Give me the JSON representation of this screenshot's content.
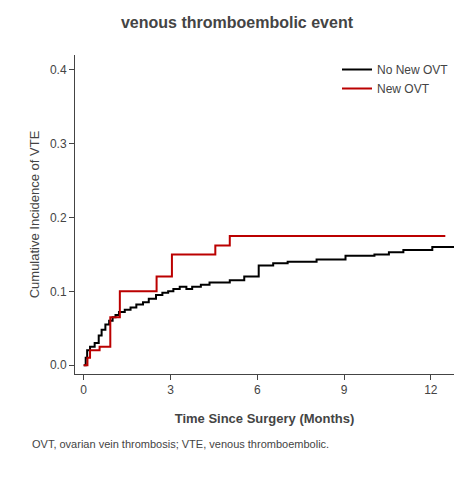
{
  "chart_data": {
    "type": "line",
    "line_style": "step",
    "title": "venous thromboembolic event",
    "x_label": "Time Since Surgery (Months)",
    "y_label": "Cumulative Incidence of VTE",
    "annotations": [
      "OVT, ovarian vein thrombosis; VTE, venous thromboembolic."
    ],
    "xlim": [
      -0.3,
      12.8
    ],
    "ylim": [
      -0.012,
      0.42
    ],
    "xticks": [
      0,
      3,
      6,
      9,
      12
    ],
    "yticks": [
      {
        "value": 0.0,
        "label": "0.0"
      },
      0.1,
      0.2,
      0.3,
      0.4
    ],
    "grid": false,
    "legend": "upper right",
    "series": [
      {
        "name": "No New OVT",
        "color": "#000000",
        "x": [
          0,
          0.07,
          0.12,
          0.22,
          0.38,
          0.52,
          0.62,
          0.75,
          0.88,
          1.0,
          1.1,
          1.22,
          1.42,
          1.62,
          1.82,
          2.05,
          2.25,
          2.5,
          2.72,
          2.92,
          3.1,
          3.32,
          3.55,
          3.75,
          4.05,
          4.35,
          4.65,
          5.05,
          5.55,
          6.05,
          6.55,
          7.05,
          8.05,
          9.05,
          10.05,
          10.55,
          11.05,
          12.05,
          12.8
        ],
        "values": [
          0.0,
          0.01,
          0.02,
          0.025,
          0.03,
          0.04,
          0.048,
          0.055,
          0.06,
          0.065,
          0.068,
          0.072,
          0.075,
          0.078,
          0.082,
          0.085,
          0.09,
          0.095,
          0.098,
          0.1,
          0.103,
          0.106,
          0.103,
          0.106,
          0.109,
          0.112,
          0.112,
          0.115,
          0.12,
          0.135,
          0.138,
          0.14,
          0.143,
          0.148,
          0.15,
          0.153,
          0.156,
          0.16,
          0.16
        ]
      },
      {
        "name": "New OVT",
        "color": "#bb0000",
        "x": [
          0,
          0.08,
          0.13,
          0.22,
          0.55,
          0.92,
          1.25,
          2.52,
          3.05,
          4.55,
          5.05,
          12.5
        ],
        "values": [
          0.0,
          0.0,
          0.01,
          0.02,
          0.025,
          0.065,
          0.1,
          0.12,
          0.15,
          0.162,
          0.175,
          0.175
        ]
      }
    ]
  }
}
